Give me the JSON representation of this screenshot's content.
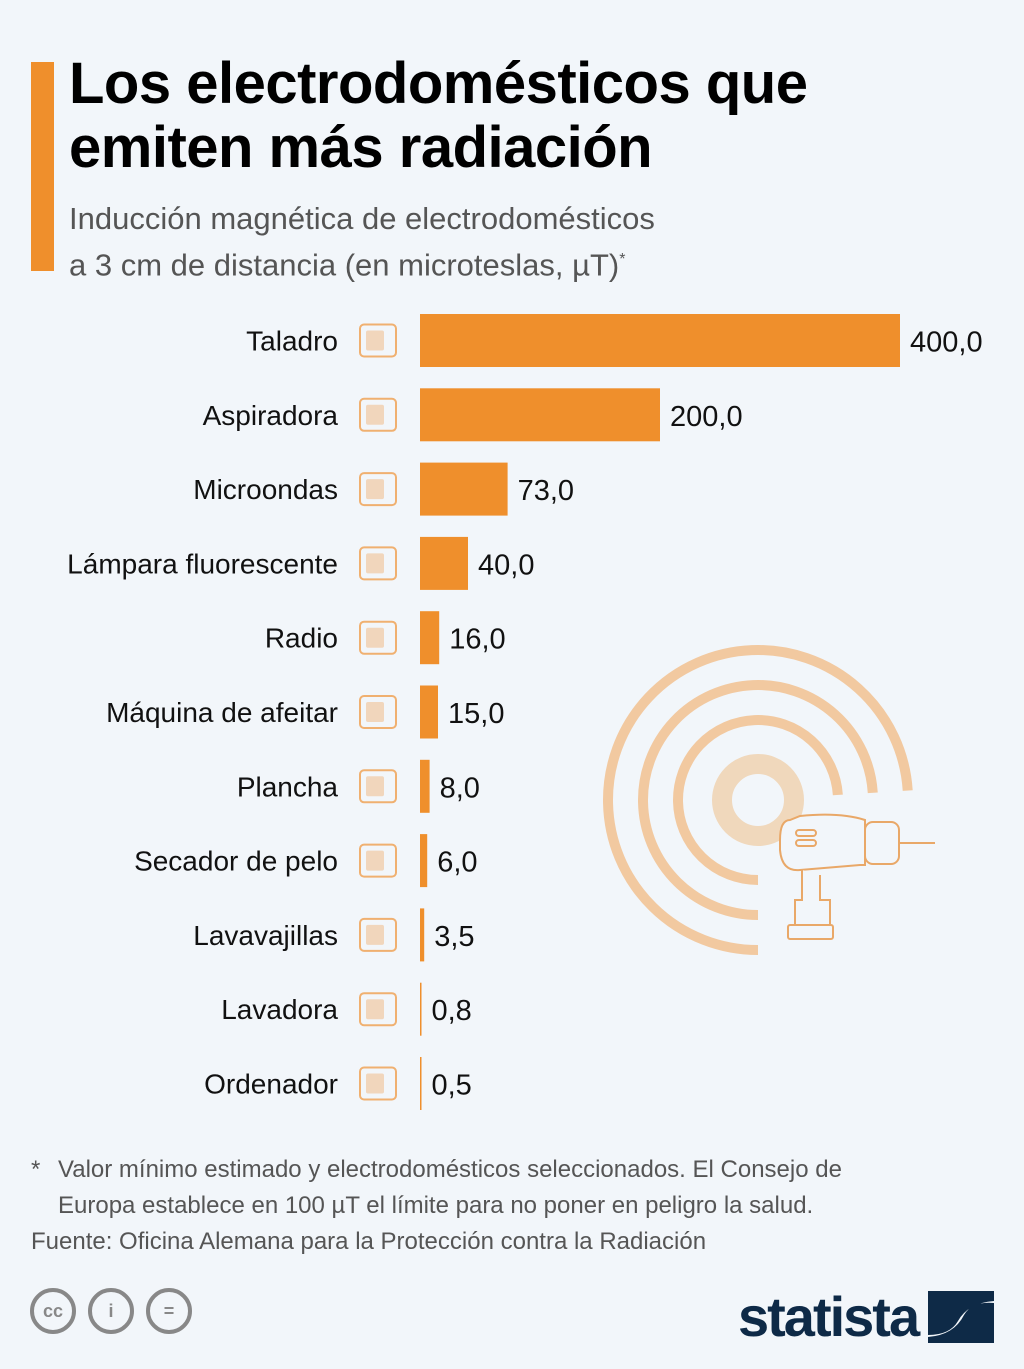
{
  "title": "Los electrodomésticos que emiten más radiación",
  "subtitle_line1": "Inducción magnética de electrodomésticos",
  "subtitle_line2": "a 3 cm de distancia (en microteslas, µT)",
  "subtitle_mark": "*",
  "colors": {
    "accent": "#ef8f2c",
    "icon": "#f0b070",
    "text": "#000000",
    "muted": "#555555",
    "logo": "#0e2a47",
    "background": "#f2f6fa"
  },
  "chart_data": {
    "type": "bar",
    "orientation": "horizontal",
    "title": "Los electrodomésticos que emiten más radiación",
    "subtitle": "Inducción magnética de electrodomésticos a 3 cm de distancia (en microteslas, µT)*",
    "xlabel": "",
    "ylabel": "",
    "xlim": [
      0,
      400
    ],
    "grid": false,
    "categories": [
      "Taladro",
      "Aspiradora",
      "Microondas",
      "Lámpara fluorescente",
      "Radio",
      "Máquina de afeitar",
      "Plancha",
      "Secador de pelo",
      "Lavavajillas",
      "Lavadora",
      "Ordenador"
    ],
    "values": [
      400.0,
      200.0,
      73.0,
      40.0,
      16.0,
      15.0,
      8.0,
      6.0,
      3.5,
      0.8,
      0.5
    ],
    "value_labels": [
      "400,0",
      "200,0",
      "73,0",
      "40,0",
      "16,0",
      "15,0",
      "8,0",
      "6,0",
      "3,5",
      "0,8",
      "0,5"
    ],
    "icons": [
      "drill-icon",
      "vacuum-cleaner-icon",
      "microwave-icon",
      "fluorescent-lamp-icon",
      "radio-icon",
      "shaver-icon",
      "iron-icon",
      "hair-dryer-icon",
      "dishwasher-icon",
      "washing-machine-icon",
      "laptop-icon"
    ]
  },
  "footnote_line1": "Valor mínimo estimado y electrodomésticos seleccionados. El Consejo de",
  "footnote_line2": "Europa establece en 100 µT el límite para no poner en peligro la salud.",
  "footnote_mark": "*",
  "source": "Fuente: Oficina Alemana para la Protección contra la Radiación",
  "license_icons": [
    "cc",
    "by",
    "nd"
  ],
  "license_labels": {
    "cc": "cc",
    "by": "i",
    "nd": "="
  },
  "logo": "statista"
}
